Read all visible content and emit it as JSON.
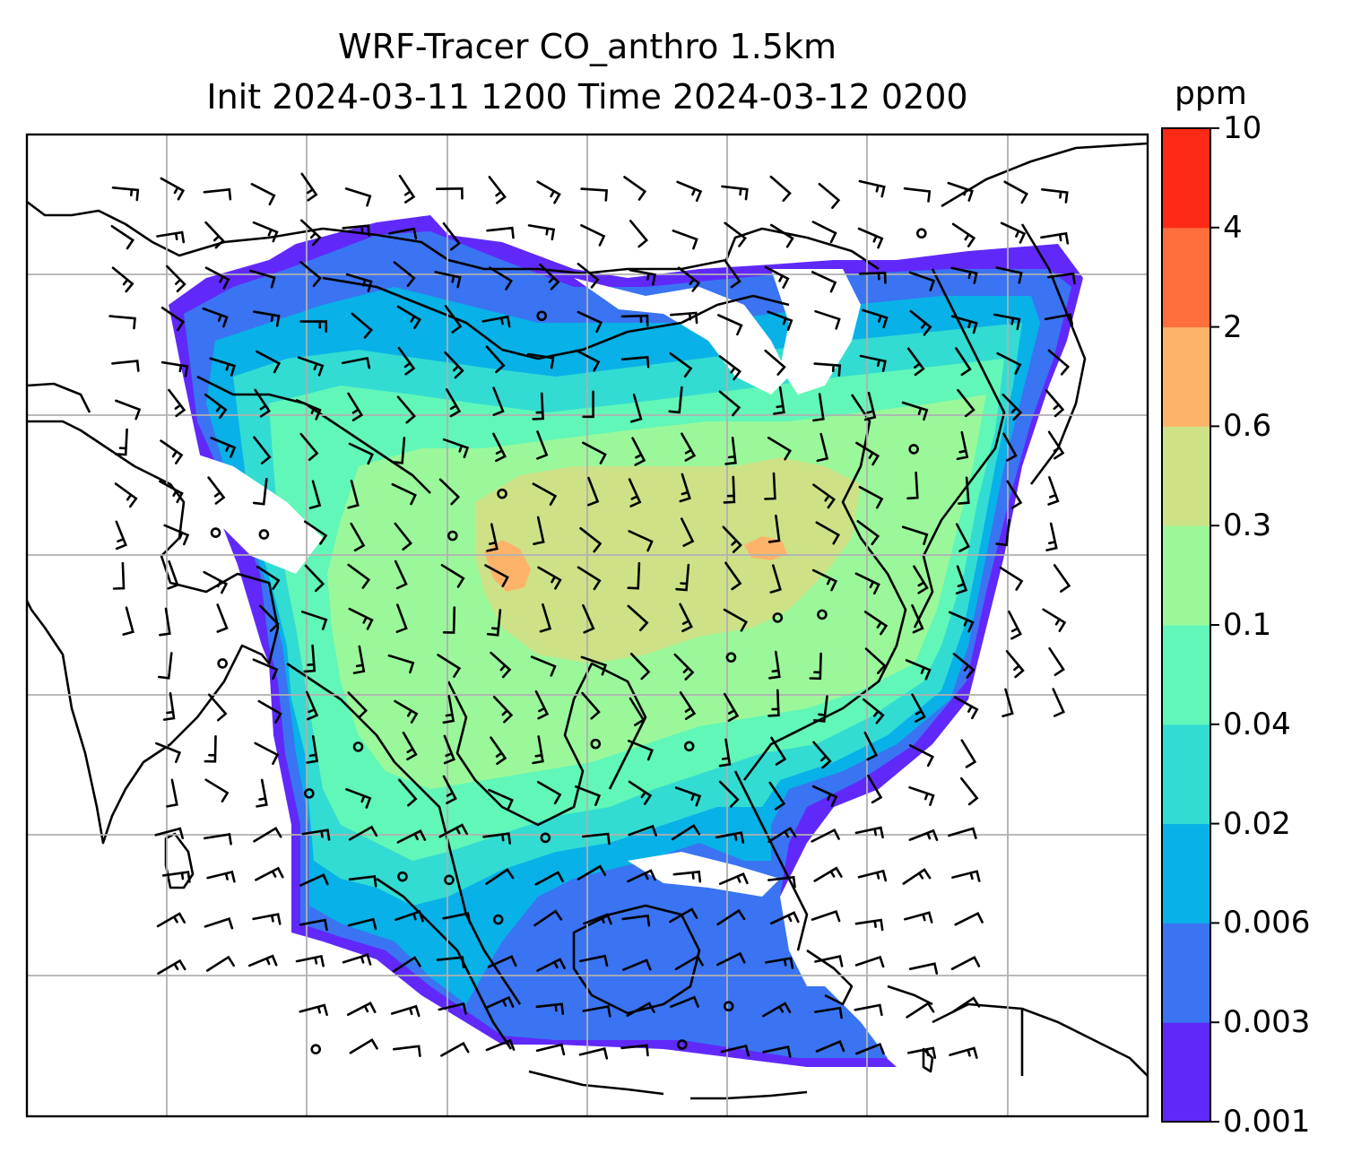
{
  "title_line1": "WRF-Tracer CO_anthro 1.5km",
  "title_line2": "Init 2024-03-11 1200 Time 2024-03-12 0200",
  "colorbar": {
    "unit": "ppm",
    "levels": [
      "0.001",
      "0.003",
      "0.006",
      "0.02",
      "0.04",
      "0.1",
      "0.3",
      "0.6",
      "2",
      "4",
      "10"
    ],
    "colors": [
      "#6029fa",
      "#3a74f2",
      "#08b1e7",
      "#33dcd2",
      "#61f7b8",
      "#9bf89a",
      "#cde287",
      "#feb36a",
      "#fe6f3b",
      "#ff2a16"
    ]
  },
  "map": {
    "background_color": "#ffffff",
    "gridline_color": "#b0b0b0",
    "coastline_color": "#000000",
    "barb_color": "#000000"
  }
}
